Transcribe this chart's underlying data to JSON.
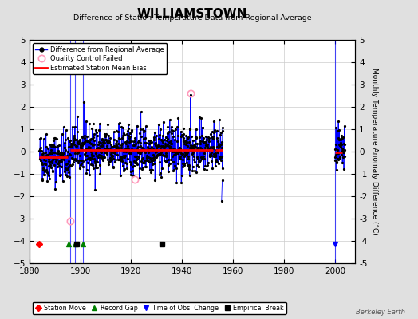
{
  "title": "WILLIAMSTOWN",
  "subtitle": "Difference of Station Temperature Data from Regional Average",
  "ylabel": "Monthly Temperature Anomaly Difference (°C)",
  "ylim": [
    -5,
    5
  ],
  "xlim": [
    1880,
    2008
  ],
  "yticks": [
    -5,
    -4,
    -3,
    -2,
    -1,
    0,
    1,
    2,
    3,
    4,
    5
  ],
  "xticks": [
    1880,
    1900,
    1920,
    1940,
    1960,
    1980,
    2000
  ],
  "bg_color": "#e0e0e0",
  "plot_bg_color": "#ffffff",
  "grid_color": "#cccccc",
  "watermark": "Berkeley Earth",
  "seed": 42,
  "seg1_start": 1884,
  "seg1_end": 1895,
  "seg1_bias": -0.25,
  "seg2_start": 1896,
  "seg2_end": 1952,
  "seg2_bias": 0.08,
  "seg3_start": 1953,
  "seg3_end": 1955,
  "seg3_bias": 0.08,
  "seg4_start": 2000,
  "seg4_end": 2003,
  "seg4_bias": -0.05,
  "qc_failed_t": [
    1896.2,
    1921.5,
    1943.4
  ],
  "qc_failed_v": [
    -3.1,
    -1.25,
    2.6
  ],
  "isolated_t": [
    1955.5,
    1955.75
  ],
  "isolated_v": [
    -2.2,
    -1.3
  ],
  "vertical_lines": [
    1896,
    1898,
    1901,
    2000
  ],
  "station_moves": [
    1884
  ],
  "record_gaps": [
    1895.5,
    1898,
    1901
  ],
  "time_obs_change": [
    2000
  ],
  "empirical_breaks": [
    1898.5,
    1932
  ],
  "marker_y": -4.15
}
